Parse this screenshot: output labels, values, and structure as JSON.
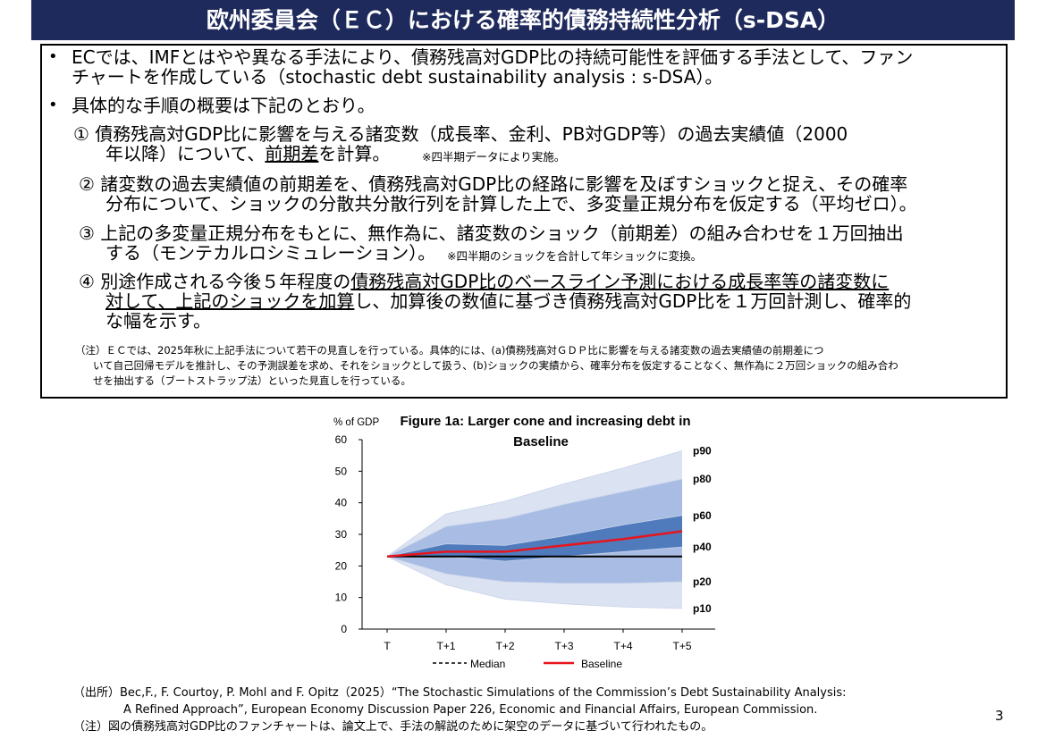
{
  "title": "欧州委員会（ＥＣ）における確率的債務持続性分析（s-DSA）",
  "bullets": {
    "b1_line1": "ECでは、IMFとはやや異なる手法により、債務残高対GDP比の持続可能性を評価する手法として、ファン",
    "b1_line2": "チャートを作成している（stochastic debt sustainability analysis : s-DSA）。",
    "b2": "具体的な手順の概要は下記のとおり。",
    "bullet_mark": "•"
  },
  "steps": {
    "s1_line1": "①  債務残高対GDP比に影響を与える諸変数（成長率、金利、PB対GDP等）の過去実績値（2000",
    "s1_line2a": "年以降）について、",
    "s1_line2b": "前期差",
    "s1_line2c": "を計算。",
    "s1_note": "※四半期データにより実施。",
    "s2_line1": "②  諸変数の過去実績値の前期差を、債務残高対GDP比の経路に影響を及ぼすショックと捉え、その確率",
    "s2_line2": "分布について、ショックの分散共分散行列を計算した上で、多変量正規分布を仮定する（平均ゼロ）。",
    "s3_line1": "③  上記の多変量正規分布をもとに、無作為に、諸変数のショック（前期差）の組み合わせを１万回抽出",
    "s3_line2": "する（モンテカルロシミュレーション）。",
    "s3_note": "※四半期のショックを合計して年ショックに変換。",
    "s4_line1a": "④  別途作成される今後５年程度の",
    "s4_line1b": "債務残高対GDP比のベースライン予測における成長率等の諸変数に",
    "s4_line2a": "対して、上記のショックを加算",
    "s4_line2b": "し、加算後の数値に基づき債務残高対GDP比を１万回計測し、確率的",
    "s4_line3": "な幅を示す。"
  },
  "box_note": {
    "line1": "（注）ＥＣでは、2025年秋に上記手法について若干の見直しを行っている。具体的には、(a)債務残高対ＧＤＰ比に影響を与える諸変数の過去実績値の前期差につ",
    "line2": "いて自己回帰モデルを推計し、その予測誤差を求め、それをショックとして扱う、(b)ショックの実績から、確率分布を仮定することなく、無作為に２万回ショックの組み合わ",
    "line3": "せを抽出する（ブートストラップ法）といった見直しを行っている。"
  },
  "chart_data": {
    "type": "area",
    "title_line1": "Figure 1a: Larger cone and increasing debt in",
    "title_line2": "Baseline",
    "ylabel": "% of GDP",
    "ylim": [
      0,
      60
    ],
    "yticks": [
      0,
      10,
      20,
      30,
      40,
      50,
      60
    ],
    "categories": [
      "T",
      "T+1",
      "T+2",
      "T+3",
      "T+4",
      "T+5"
    ],
    "bands": [
      {
        "name": "p10",
        "values": [
          23,
          14,
          9.5,
          8,
          7,
          6.5
        ]
      },
      {
        "name": "p20",
        "values": [
          23,
          17.5,
          15,
          14.5,
          14.5,
          15
        ]
      },
      {
        "name": "p40",
        "values": [
          23,
          23,
          21.5,
          23,
          24.5,
          26
        ]
      },
      {
        "name": "p60",
        "values": [
          23,
          27,
          26.5,
          29.5,
          33,
          36
        ]
      },
      {
        "name": "p80",
        "values": [
          23,
          32.5,
          35,
          39.5,
          43.5,
          47.5
        ]
      },
      {
        "name": "p90",
        "values": [
          23,
          36.5,
          40.5,
          46,
          51,
          56.5
        ]
      }
    ],
    "series": [
      {
        "name": "Median",
        "values": [
          23,
          23,
          23,
          23,
          23,
          23
        ]
      },
      {
        "name": "Baseline",
        "values": [
          23,
          24.5,
          24.5,
          26.5,
          28.5,
          31
        ]
      }
    ],
    "legend": {
      "median_label": "Median",
      "baseline_label": "Baseline",
      "position": "bottom"
    },
    "colors": {
      "outer": "#dbe3f3",
      "mid": "#a9bde4",
      "inner": "#4f7bbd",
      "median": "#000000",
      "baseline": "#e8141b"
    }
  },
  "source": {
    "line1": "（出所）Bec,F., F. Courtoy, P. Mohl and F. Opitz（2025）“The Stochastic Simulations of the Commission’s Debt Sustainability Analysis:",
    "line2": "A Refined Approach”, European Economy Discussion Paper 226, Economic and Financial Affairs, European Commission.",
    "line3": "（注）図の債務残高対GDP比のファンチャートは、論文上で、手法の解説のために架空のデータに基づいて行われたもの。"
  },
  "page_number": "3"
}
